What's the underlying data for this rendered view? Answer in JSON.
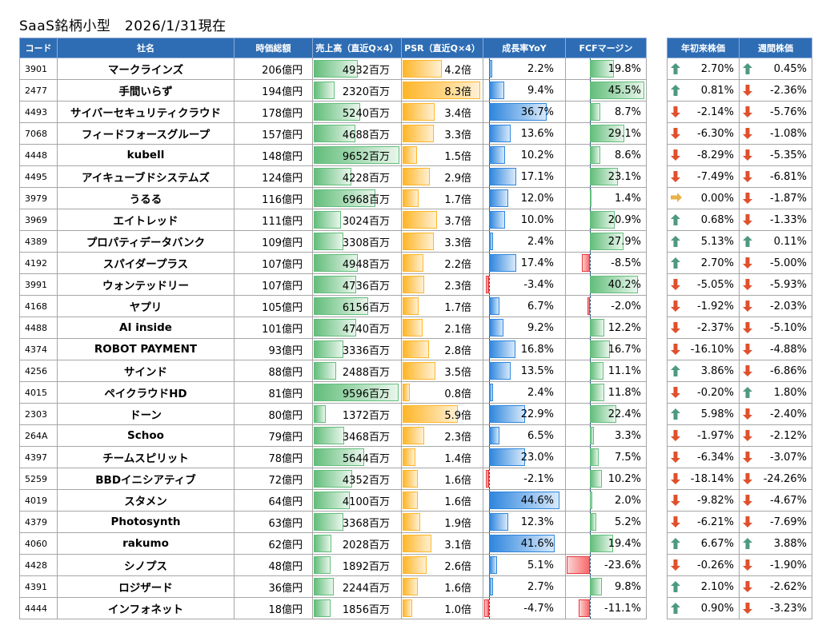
{
  "title": "SaaS銘柄小型　2026/1/31現在",
  "colors": {
    "header_bg": "#2e6db4",
    "up": "#4e9a7e",
    "down": "#e0502c",
    "flat": "#e8b24a",
    "sales": "#63be7b",
    "psr": "#ffb628",
    "growth": "#2e86de",
    "neg": "#f8696b"
  },
  "headers": {
    "code": "コード",
    "name": "社名",
    "cap": "時価総額",
    "sales": "売上高（直近Q×4）",
    "psr": "PSR（直近Q×4）",
    "growth": "成長率YoY",
    "fcf": "FCFマージン",
    "ytd": "年初来株価",
    "week": "週間株価"
  },
  "rows": [
    {
      "code": "3901",
      "name": "マークラインズ",
      "cap": "206億円",
      "sales": "4932百万",
      "psr": "4.2倍",
      "growth": "2.2%",
      "fcf": "19.8%",
      "ytd": "2.70%",
      "week": "0.45%",
      "sales_v": 4932,
      "psr_v": 4.2,
      "growth_v": 2.2,
      "fcf_v": 19.8,
      "ytd_dir": "up",
      "week_dir": "up"
    },
    {
      "code": "2477",
      "name": "手間いらず",
      "cap": "194億円",
      "sales": "2320百万",
      "psr": "8.3倍",
      "growth": "9.4%",
      "fcf": "45.5%",
      "ytd": "0.81%",
      "week": "-2.36%",
      "sales_v": 2320,
      "psr_v": 8.3,
      "growth_v": 9.4,
      "fcf_v": 45.5,
      "ytd_dir": "up",
      "week_dir": "down"
    },
    {
      "code": "4493",
      "name": "サイバーセキュリティクラウド",
      "cap": "178億円",
      "sales": "5240百万",
      "psr": "3.4倍",
      "growth": "36.7%",
      "fcf": "8.7%",
      "ytd": "-2.14%",
      "week": "-5.76%",
      "sales_v": 5240,
      "psr_v": 3.4,
      "growth_v": 36.7,
      "fcf_v": 8.7,
      "ytd_dir": "down",
      "week_dir": "down"
    },
    {
      "code": "7068",
      "name": "フィードフォースグループ",
      "cap": "157億円",
      "sales": "4688百万",
      "psr": "3.3倍",
      "growth": "13.6%",
      "fcf": "29.1%",
      "ytd": "-6.30%",
      "week": "-1.08%",
      "sales_v": 4688,
      "psr_v": 3.3,
      "growth_v": 13.6,
      "fcf_v": 29.1,
      "ytd_dir": "down",
      "week_dir": "down"
    },
    {
      "code": "4448",
      "name": "kubell",
      "cap": "148億円",
      "sales": "9652百万",
      "psr": "1.5倍",
      "growth": "10.2%",
      "fcf": "8.6%",
      "ytd": "-8.29%",
      "week": "-5.35%",
      "sales_v": 9652,
      "psr_v": 1.5,
      "growth_v": 10.2,
      "fcf_v": 8.6,
      "ytd_dir": "down",
      "week_dir": "down"
    },
    {
      "code": "4495",
      "name": "アイキューブドシステムズ",
      "cap": "124億円",
      "sales": "4228百万",
      "psr": "2.9倍",
      "growth": "17.1%",
      "fcf": "23.1%",
      "ytd": "-7.49%",
      "week": "-6.81%",
      "sales_v": 4228,
      "psr_v": 2.9,
      "growth_v": 17.1,
      "fcf_v": 23.1,
      "ytd_dir": "down",
      "week_dir": "down"
    },
    {
      "code": "3979",
      "name": "うるる",
      "cap": "116億円",
      "sales": "6968百万",
      "psr": "1.7倍",
      "growth": "12.0%",
      "fcf": "1.4%",
      "ytd": "0.00%",
      "week": "-1.87%",
      "sales_v": 6968,
      "psr_v": 1.7,
      "growth_v": 12.0,
      "fcf_v": 1.4,
      "ytd_dir": "flat",
      "week_dir": "down"
    },
    {
      "code": "3969",
      "name": "エイトレッド",
      "cap": "111億円",
      "sales": "3024百万",
      "psr": "3.7倍",
      "growth": "10.0%",
      "fcf": "20.9%",
      "ytd": "0.68%",
      "week": "-1.33%",
      "sales_v": 3024,
      "psr_v": 3.7,
      "growth_v": 10.0,
      "fcf_v": 20.9,
      "ytd_dir": "up",
      "week_dir": "down"
    },
    {
      "code": "4389",
      "name": "プロパティデータバンク",
      "cap": "109億円",
      "sales": "3308百万",
      "psr": "3.3倍",
      "growth": "2.4%",
      "fcf": "27.9%",
      "ytd": "5.13%",
      "week": "0.11%",
      "sales_v": 3308,
      "psr_v": 3.3,
      "growth_v": 2.4,
      "fcf_v": 27.9,
      "ytd_dir": "up",
      "week_dir": "up"
    },
    {
      "code": "4192",
      "name": "スパイダープラス",
      "cap": "107億円",
      "sales": "4948百万",
      "psr": "2.2倍",
      "growth": "17.4%",
      "fcf": "-8.5%",
      "ytd": "2.70%",
      "week": "-5.00%",
      "sales_v": 4948,
      "psr_v": 2.2,
      "growth_v": 17.4,
      "fcf_v": -8.5,
      "ytd_dir": "up",
      "week_dir": "down"
    },
    {
      "code": "3991",
      "name": "ウォンテッドリー",
      "cap": "107億円",
      "sales": "4736百万",
      "psr": "2.3倍",
      "growth": "-3.4%",
      "fcf": "40.2%",
      "ytd": "-5.05%",
      "week": "-5.93%",
      "sales_v": 4736,
      "psr_v": 2.3,
      "growth_v": -3.4,
      "fcf_v": 40.2,
      "ytd_dir": "down",
      "week_dir": "down"
    },
    {
      "code": "4168",
      "name": "ヤプリ",
      "cap": "105億円",
      "sales": "6156百万",
      "psr": "1.7倍",
      "growth": "6.7%",
      "fcf": "-2.0%",
      "ytd": "-1.92%",
      "week": "-2.03%",
      "sales_v": 6156,
      "psr_v": 1.7,
      "growth_v": 6.7,
      "fcf_v": -2.0,
      "ytd_dir": "down",
      "week_dir": "down"
    },
    {
      "code": "4488",
      "name": "AI inside",
      "cap": "101億円",
      "sales": "4740百万",
      "psr": "2.1倍",
      "growth": "9.2%",
      "fcf": "12.2%",
      "ytd": "-2.37%",
      "week": "-5.10%",
      "sales_v": 4740,
      "psr_v": 2.1,
      "growth_v": 9.2,
      "fcf_v": 12.2,
      "ytd_dir": "down",
      "week_dir": "down"
    },
    {
      "code": "4374",
      "name": "ROBOT PAYMENT",
      "cap": "93億円",
      "sales": "3336百万",
      "psr": "2.8倍",
      "growth": "16.8%",
      "fcf": "16.7%",
      "ytd": "-16.10%",
      "week": "-4.88%",
      "sales_v": 3336,
      "psr_v": 2.8,
      "growth_v": 16.8,
      "fcf_v": 16.7,
      "ytd_dir": "down",
      "week_dir": "down"
    },
    {
      "code": "4256",
      "name": "サインド",
      "cap": "88億円",
      "sales": "2488百万",
      "psr": "3.5倍",
      "growth": "13.5%",
      "fcf": "11.1%",
      "ytd": "3.86%",
      "week": "-6.86%",
      "sales_v": 2488,
      "psr_v": 3.5,
      "growth_v": 13.5,
      "fcf_v": 11.1,
      "ytd_dir": "up",
      "week_dir": "down"
    },
    {
      "code": "4015",
      "name": "ペイクラウドHD",
      "cap": "81億円",
      "sales": "9596百万",
      "psr": "0.8倍",
      "growth": "2.4%",
      "fcf": "11.8%",
      "ytd": "-0.20%",
      "week": "1.80%",
      "sales_v": 9596,
      "psr_v": 0.8,
      "growth_v": 2.4,
      "fcf_v": 11.8,
      "ytd_dir": "down",
      "week_dir": "up"
    },
    {
      "code": "2303",
      "name": "ドーン",
      "cap": "80億円",
      "sales": "1372百万",
      "psr": "5.9倍",
      "growth": "22.9%",
      "fcf": "22.4%",
      "ytd": "5.98%",
      "week": "-2.40%",
      "sales_v": 1372,
      "psr_v": 5.9,
      "growth_v": 22.9,
      "fcf_v": 22.4,
      "ytd_dir": "up",
      "week_dir": "down"
    },
    {
      "code": "264A",
      "name": "Schoo",
      "cap": "79億円",
      "sales": "3468百万",
      "psr": "2.3倍",
      "growth": "6.5%",
      "fcf": "3.3%",
      "ytd": "-1.97%",
      "week": "-2.12%",
      "sales_v": 3468,
      "psr_v": 2.3,
      "growth_v": 6.5,
      "fcf_v": 3.3,
      "ytd_dir": "down",
      "week_dir": "down"
    },
    {
      "code": "4397",
      "name": "チームスピリット",
      "cap": "78億円",
      "sales": "5644百万",
      "psr": "1.4倍",
      "growth": "23.0%",
      "fcf": "7.5%",
      "ytd": "-6.34%",
      "week": "-3.07%",
      "sales_v": 5644,
      "psr_v": 1.4,
      "growth_v": 23.0,
      "fcf_v": 7.5,
      "ytd_dir": "down",
      "week_dir": "down"
    },
    {
      "code": "5259",
      "name": "BBDイニシアティブ",
      "cap": "72億円",
      "sales": "4352百万",
      "psr": "1.6倍",
      "growth": "-2.1%",
      "fcf": "10.2%",
      "ytd": "-18.14%",
      "week": "-24.26%",
      "sales_v": 4352,
      "psr_v": 1.6,
      "growth_v": -2.1,
      "fcf_v": 10.2,
      "ytd_dir": "down",
      "week_dir": "down"
    },
    {
      "code": "4019",
      "name": "スタメン",
      "cap": "64億円",
      "sales": "4100百万",
      "psr": "1.6倍",
      "growth": "44.6%",
      "fcf": "2.0%",
      "ytd": "-9.82%",
      "week": "-4.67%",
      "sales_v": 4100,
      "psr_v": 1.6,
      "growth_v": 44.6,
      "fcf_v": 2.0,
      "ytd_dir": "down",
      "week_dir": "down"
    },
    {
      "code": "4379",
      "name": "Photosynth",
      "cap": "63億円",
      "sales": "3368百万",
      "psr": "1.9倍",
      "growth": "12.3%",
      "fcf": "5.2%",
      "ytd": "-6.21%",
      "week": "-7.69%",
      "sales_v": 3368,
      "psr_v": 1.9,
      "growth_v": 12.3,
      "fcf_v": 5.2,
      "ytd_dir": "down",
      "week_dir": "down"
    },
    {
      "code": "4060",
      "name": "rakumo",
      "cap": "62億円",
      "sales": "2028百万",
      "psr": "3.1倍",
      "growth": "41.6%",
      "fcf": "19.4%",
      "ytd": "6.67%",
      "week": "3.88%",
      "sales_v": 2028,
      "psr_v": 3.1,
      "growth_v": 41.6,
      "fcf_v": 19.4,
      "ytd_dir": "up",
      "week_dir": "up"
    },
    {
      "code": "4428",
      "name": "シノプス",
      "cap": "48億円",
      "sales": "1892百万",
      "psr": "2.6倍",
      "growth": "5.1%",
      "fcf": "-23.6%",
      "ytd": "-0.26%",
      "week": "-1.90%",
      "sales_v": 1892,
      "psr_v": 2.6,
      "growth_v": 5.1,
      "fcf_v": -23.6,
      "ytd_dir": "down",
      "week_dir": "down"
    },
    {
      "code": "4391",
      "name": "ロジザード",
      "cap": "36億円",
      "sales": "2244百万",
      "psr": "1.6倍",
      "growth": "2.7%",
      "fcf": "9.8%",
      "ytd": "2.10%",
      "week": "-2.62%",
      "sales_v": 2244,
      "psr_v": 1.6,
      "growth_v": 2.7,
      "fcf_v": 9.8,
      "ytd_dir": "up",
      "week_dir": "down"
    },
    {
      "code": "4444",
      "name": "インフォネット",
      "cap": "18億円",
      "sales": "1856百万",
      "psr": "1.0倍",
      "growth": "-4.7%",
      "fcf": "-11.1%",
      "ytd": "0.90%",
      "week": "-3.23%",
      "sales_v": 1856,
      "psr_v": 1.0,
      "growth_v": -4.7,
      "fcf_v": -11.1,
      "ytd_dir": "up",
      "week_dir": "down"
    }
  ]
}
